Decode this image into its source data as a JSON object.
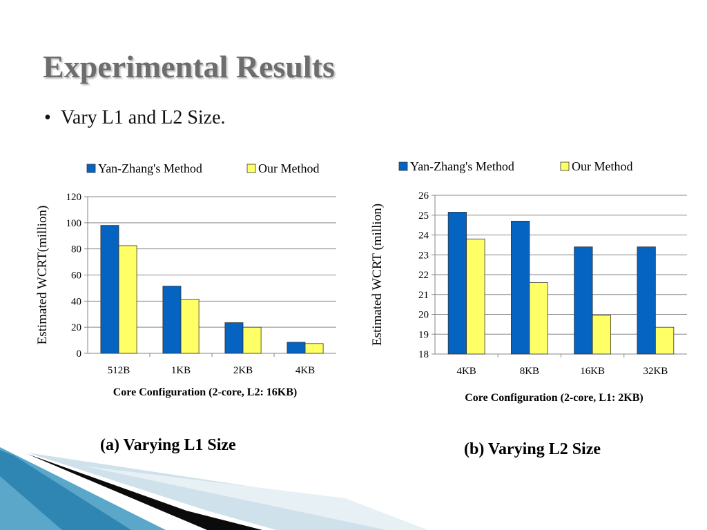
{
  "slide": {
    "title": "Experimental Results",
    "bullet_mark": "•",
    "bullet_text": "Vary L1 and L2 Size."
  },
  "colors": {
    "series_1": "#0563c1",
    "series_2": "#ffff66",
    "grid": "#868686",
    "title_text": "#6d6d6d"
  },
  "captions": {
    "left": "(a) Varying L1 Size",
    "right": "(b) Varying L2 Size"
  },
  "chart_data": [
    {
      "type": "bar",
      "categories": [
        "512B",
        "1KB",
        "2KB",
        "4KB"
      ],
      "series": [
        {
          "name": "Yan-Zhang's Method",
          "values": [
            98,
            51.5,
            23.5,
            8.5
          ]
        },
        {
          "name": "Our Method",
          "values": [
            82.5,
            41.5,
            20,
            7.5
          ]
        }
      ],
      "xlabel": "Core Configuration (2-core, L2: 16KB)",
      "ylabel": "Estimated WCRT(million)",
      "ylim": [
        0,
        120
      ],
      "yticks": [
        0,
        20,
        40,
        60,
        80,
        100,
        120
      ],
      "grid": true,
      "legend": "top"
    },
    {
      "type": "bar",
      "categories": [
        "4KB",
        "8KB",
        "16KB",
        "32KB"
      ],
      "series": [
        {
          "name": "Yan-Zhang's Method",
          "values": [
            25.15,
            24.7,
            23.4,
            23.4
          ]
        },
        {
          "name": "Our Method",
          "values": [
            23.8,
            21.6,
            19.95,
            19.35
          ]
        }
      ],
      "xlabel": "Core Configuration (2-core, L1: 2KB)",
      "ylabel": "Estimated WCRT  (million)",
      "ylim": [
        18,
        26
      ],
      "yticks": [
        18,
        19,
        20,
        21,
        22,
        23,
        24,
        25,
        26
      ],
      "grid": true,
      "legend": "top"
    }
  ]
}
